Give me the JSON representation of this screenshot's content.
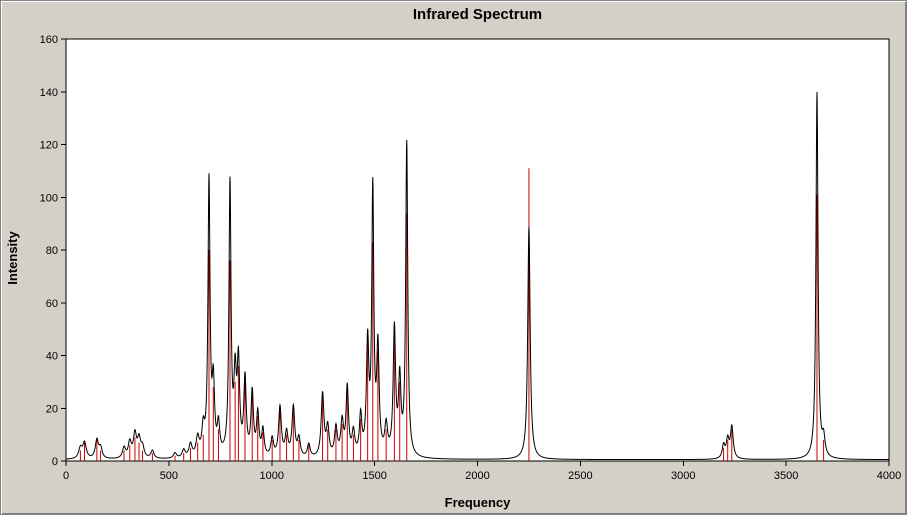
{
  "window": {
    "background": "#d4d0c8",
    "plot_background": "#ffffff",
    "border_color": "#848484"
  },
  "chart_data": {
    "type": "line",
    "title": "Infrared Spectrum",
    "xlabel": "Frequency",
    "ylabel": "Intensity",
    "xlim": [
      0,
      4000
    ],
    "ylim": [
      0,
      160
    ],
    "x_ticks": [
      0,
      500,
      1000,
      1500,
      2000,
      2500,
      3000,
      3500,
      4000
    ],
    "y_ticks": [
      0,
      20,
      40,
      60,
      80,
      100,
      120,
      140,
      160
    ],
    "grid": false,
    "legend": false,
    "series": [
      {
        "name": "broadened-spectrum-curve",
        "style": "line",
        "color": "#000000"
      },
      {
        "name": "peak-intensity-sticks",
        "style": "stick",
        "color": "#cc0000"
      }
    ],
    "line_color": "#000000",
    "stick_color": "#cc0000",
    "curve_baseline": 0.5,
    "sticks": [
      [
        70,
        4
      ],
      [
        90,
        7
      ],
      [
        150,
        8
      ],
      [
        168,
        4
      ],
      [
        282,
        4
      ],
      [
        310,
        6
      ],
      [
        335,
        9
      ],
      [
        355,
        7
      ],
      [
        372,
        4
      ],
      [
        420,
        3
      ],
      [
        530,
        2
      ],
      [
        572,
        3
      ],
      [
        605,
        5
      ],
      [
        640,
        7
      ],
      [
        667,
        10
      ],
      [
        695,
        80
      ],
      [
        716,
        28
      ],
      [
        741,
        12
      ],
      [
        797,
        76
      ],
      [
        822,
        30
      ],
      [
        838,
        36
      ],
      [
        870,
        30
      ],
      [
        905,
        25
      ],
      [
        932,
        17
      ],
      [
        957,
        11
      ],
      [
        1002,
        8
      ],
      [
        1040,
        20
      ],
      [
        1072,
        10
      ],
      [
        1105,
        20
      ],
      [
        1132,
        8
      ],
      [
        1180,
        6
      ],
      [
        1247,
        25
      ],
      [
        1272,
        12
      ],
      [
        1312,
        12
      ],
      [
        1342,
        14
      ],
      [
        1367,
        28
      ],
      [
        1397,
        10
      ],
      [
        1432,
        16
      ],
      [
        1466,
        45
      ],
      [
        1491,
        83
      ],
      [
        1516,
        42
      ],
      [
        1556,
        12
      ],
      [
        1596,
        50
      ],
      [
        1622,
        30
      ],
      [
        1656,
        94
      ],
      [
        2250,
        111
      ],
      [
        3196,
        5
      ],
      [
        3216,
        8
      ],
      [
        3236,
        12
      ],
      [
        3650,
        101
      ],
      [
        3682,
        8
      ]
    ],
    "curve_components": [
      [
        70,
        4,
        10
      ],
      [
        90,
        6,
        10
      ],
      [
        150,
        7,
        9
      ],
      [
        168,
        4,
        9
      ],
      [
        282,
        4,
        9
      ],
      [
        310,
        6,
        9
      ],
      [
        335,
        9,
        9
      ],
      [
        355,
        7,
        9
      ],
      [
        372,
        4,
        9
      ],
      [
        420,
        3,
        9
      ],
      [
        530,
        2,
        9
      ],
      [
        572,
        3,
        9
      ],
      [
        605,
        5,
        9
      ],
      [
        640,
        7,
        9
      ],
      [
        667,
        10,
        8
      ],
      [
        695,
        104,
        6
      ],
      [
        716,
        26,
        7
      ],
      [
        741,
        11,
        7
      ],
      [
        797,
        103,
        6
      ],
      [
        822,
        28,
        7
      ],
      [
        838,
        34,
        7
      ],
      [
        870,
        29,
        7
      ],
      [
        905,
        24,
        7
      ],
      [
        932,
        16,
        7
      ],
      [
        957,
        10,
        7
      ],
      [
        1002,
        7,
        8
      ],
      [
        1040,
        19,
        8
      ],
      [
        1072,
        9,
        8
      ],
      [
        1105,
        19,
        8
      ],
      [
        1132,
        7,
        8
      ],
      [
        1180,
        5,
        8
      ],
      [
        1247,
        24,
        8
      ],
      [
        1272,
        11,
        8
      ],
      [
        1312,
        11,
        8
      ],
      [
        1342,
        13,
        8
      ],
      [
        1367,
        26,
        7
      ],
      [
        1397,
        9,
        8
      ],
      [
        1432,
        15,
        7
      ],
      [
        1466,
        42,
        7
      ],
      [
        1491,
        100,
        6
      ],
      [
        1516,
        40,
        7
      ],
      [
        1556,
        11,
        8
      ],
      [
        1596,
        48,
        7
      ],
      [
        1622,
        28,
        7
      ],
      [
        1656,
        119,
        6
      ],
      [
        2250,
        88,
        7
      ],
      [
        3196,
        5,
        8
      ],
      [
        3216,
        7,
        8
      ],
      [
        3236,
        12,
        8
      ],
      [
        3650,
        139,
        6
      ],
      [
        3682,
        7,
        8
      ]
    ]
  }
}
